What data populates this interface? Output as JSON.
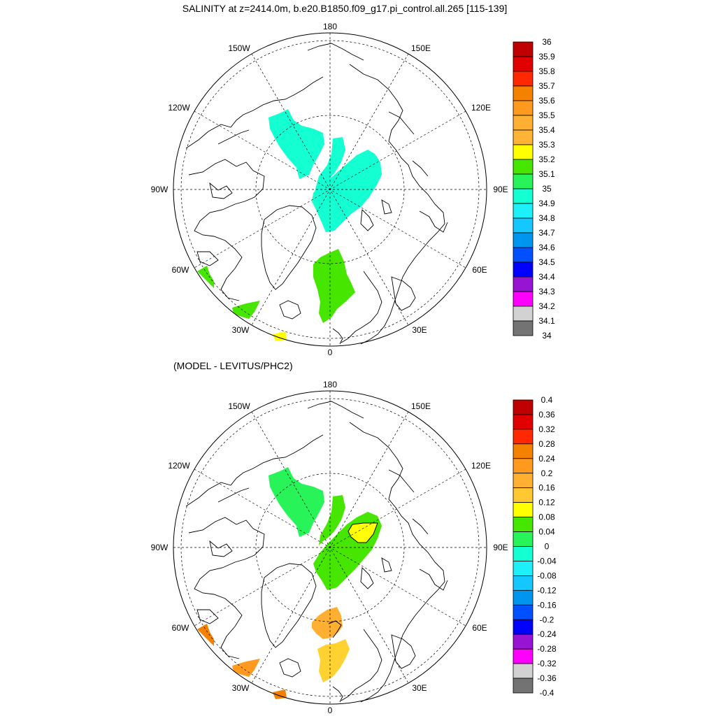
{
  "title": "SALINITY at z=2414.0m, b.e20.B1850.f09_g17.pi_control.all.265 [115-139]",
  "diff_title": "(MODEL - LEVITUS/PHC2)",
  "longitude_labels": {
    "top": "180",
    "bottom": "0",
    "upper_left": "150W",
    "upper_right": "150E",
    "mid_upper_left": "120W",
    "mid_upper_right": "120E",
    "left": "90W",
    "right": "90E",
    "mid_lower_left": "60W",
    "mid_lower_right": "60E",
    "lower_left": "30W",
    "lower_right": "30E"
  },
  "colors": {
    "land_outline": "#000000",
    "graticule": "#000000",
    "contour": "#000000"
  },
  "maps": [
    {
      "name": "salinity",
      "colorbar": {
        "levels": [
          "36",
          "35.9",
          "35.8",
          "35.7",
          "35.6",
          "35.5",
          "35.4",
          "35.3",
          "35.2",
          "35.1",
          "35",
          "34.9",
          "34.8",
          "34.7",
          "34.6",
          "34.5",
          "34.4",
          "34.3",
          "34.2",
          "34.1",
          "34"
        ],
        "colors": [
          "#c00000",
          "#e00000",
          "#ff2800",
          "#f48200",
          "#ff9a1e",
          "#ffb032",
          "#ffb438",
          "#ffff00",
          "#46e600",
          "#28f45a",
          "#14ffd2",
          "#1ef0fa",
          "#14c8ff",
          "#0096f0",
          "#0050ff",
          "#0000ff",
          "#9614d2",
          "#ff00ff",
          "#d2d2d2",
          "#737373"
        ]
      },
      "field_patches": [
        {
          "region": "canada-basin",
          "value": 34.9
        },
        {
          "region": "eurasian-basin",
          "value": 34.9
        },
        {
          "region": "nordic-seas",
          "value": 35.1
        },
        {
          "region": "labrador-sea",
          "value": 35.1
        },
        {
          "region": "north-atlantic",
          "value": 35.1
        },
        {
          "region": "atlantic-south-edge",
          "value": 35.3
        }
      ]
    },
    {
      "name": "difference",
      "colorbar": {
        "levels": [
          "0.4",
          "0.36",
          "0.32",
          "0.28",
          "0.24",
          "0.2",
          "0.16",
          "0.12",
          "0.08",
          "0.04",
          "0",
          "-0.04",
          "-0.08",
          "-0.12",
          "-0.16",
          "-0.2",
          "-0.24",
          "-0.28",
          "-0.32",
          "-0.36",
          "-0.4"
        ],
        "colors": [
          "#c00000",
          "#e00000",
          "#ff2800",
          "#f48200",
          "#ff9a1e",
          "#ffb032",
          "#ffc832",
          "#ffff00",
          "#46e600",
          "#28f45a",
          "#14ffd2",
          "#1ef0fa",
          "#14c8ff",
          "#0096f0",
          "#0050ff",
          "#0000ff",
          "#9614d2",
          "#ff00ff",
          "#d2d2d2",
          "#737373"
        ]
      },
      "field_patches": [
        {
          "region": "canada-basin",
          "value": 0.02
        },
        {
          "region": "eurasian-basin",
          "value": 0.06
        },
        {
          "region": "yellow-pocket",
          "value": 0.1
        },
        {
          "region": "nordic-seas",
          "value": 0.14
        },
        {
          "region": "labrador-sea",
          "value": 0.26
        },
        {
          "region": "north-atlantic",
          "value": 0.26
        },
        {
          "region": "atlantic-south-edge",
          "value": 0.26
        }
      ]
    }
  ]
}
